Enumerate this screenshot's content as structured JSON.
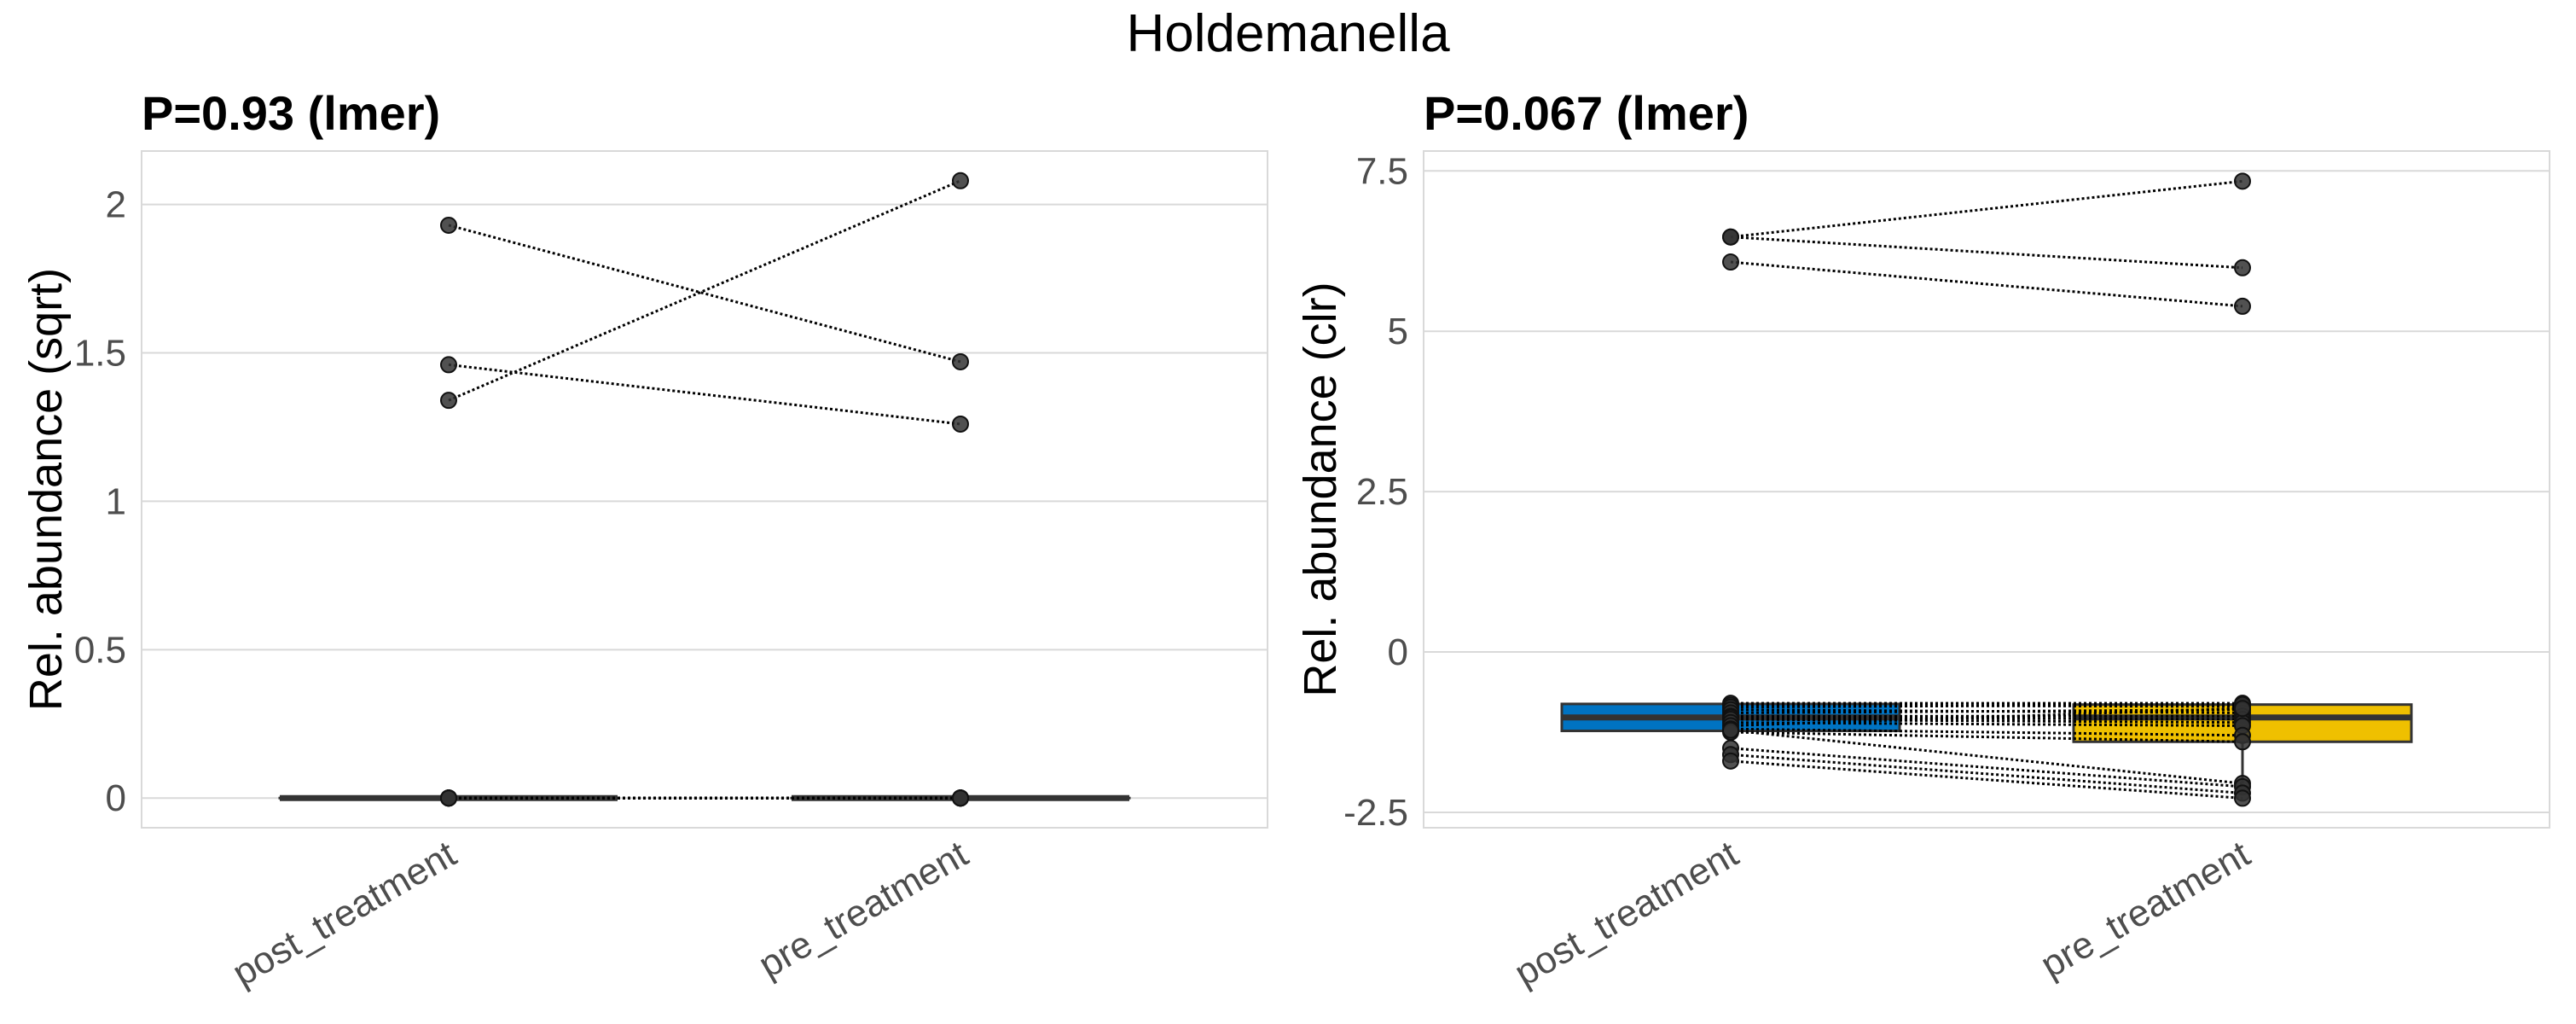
{
  "title": "Holdemanella",
  "colors": {
    "post_treatment": "#0073C2",
    "pre_treatment": "#EFC000",
    "points": "#333333",
    "grid": "#d9d9d9"
  },
  "chart_data": [
    {
      "type": "box",
      "title": "P=0.93 (lmer)",
      "ylabel": "Rel. abundance (sqrt)",
      "xlabel": "",
      "categories": [
        "post_treatment",
        "pre_treatment"
      ],
      "ylim": [
        -0.1,
        2.18
      ],
      "yticks": [
        0,
        0.5,
        1,
        1.5,
        2
      ],
      "ytick_labels": [
        "0",
        "0.5",
        "1",
        "1.5",
        "2"
      ],
      "grid": true,
      "filled": false,
      "boxes": [
        {
          "q1": 0,
          "median": 0,
          "q3": 0,
          "whisker_low": 0,
          "whisker_high": 0
        },
        {
          "q1": 0,
          "median": 0,
          "q3": 0,
          "whisker_low": 0,
          "whisker_high": 0
        }
      ],
      "paired_points": [
        [
          1.93,
          1.47
        ],
        [
          1.46,
          1.26
        ],
        [
          1.34,
          2.08
        ],
        [
          0,
          0
        ],
        [
          0,
          0
        ],
        [
          0,
          0
        ],
        [
          0,
          0
        ],
        [
          0,
          0
        ],
        [
          0,
          0
        ],
        [
          0,
          0
        ],
        [
          0,
          0
        ]
      ]
    },
    {
      "type": "box",
      "title": "P=0.067 (lmer)",
      "ylabel": "Rel. abundance (clr)",
      "xlabel": "",
      "categories": [
        "post_treatment",
        "pre_treatment"
      ],
      "ylim": [
        -2.74,
        7.81
      ],
      "yticks": [
        -2.5,
        0,
        2.5,
        5,
        7.5
      ],
      "ytick_labels": [
        "-2.5",
        "0",
        "2.5",
        "5",
        "7.5"
      ],
      "grid": true,
      "filled": true,
      "boxes": [
        {
          "q1": -1.23,
          "median": -1.02,
          "q3": -0.81,
          "whisker_low": -1.25,
          "whisker_high": -0.8
        },
        {
          "q1": -1.4,
          "median": -1.02,
          "q3": -0.82,
          "whisker_low": -2.05,
          "whisker_high": -0.8
        }
      ],
      "paired_points": [
        [
          6.47,
          7.34
        ],
        [
          6.47,
          5.99
        ],
        [
          6.08,
          5.39
        ],
        [
          -0.8,
          -0.8
        ],
        [
          -0.83,
          -0.85
        ],
        [
          -0.86,
          -0.82
        ],
        [
          -0.9,
          -0.95
        ],
        [
          -0.95,
          -0.9
        ],
        [
          -1.0,
          -1.0
        ],
        [
          -1.02,
          -1.05
        ],
        [
          -1.05,
          -1.1
        ],
        [
          -1.1,
          -1.15
        ],
        [
          -1.15,
          -0.88
        ],
        [
          -1.2,
          -1.3
        ],
        [
          -1.25,
          -1.4
        ],
        [
          -1.22,
          -2.05
        ],
        [
          -1.5,
          -2.1
        ],
        [
          -1.6,
          -2.2
        ],
        [
          -1.7,
          -2.28
        ]
      ]
    }
  ]
}
